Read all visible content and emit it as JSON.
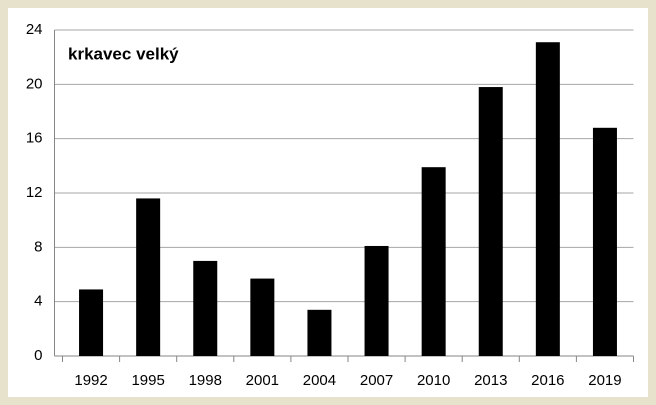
{
  "chart_data": {
    "type": "bar",
    "title": "krkavec velký",
    "categories": [
      "1992",
      "1995",
      "1998",
      "2001",
      "2004",
      "2007",
      "2010",
      "2013",
      "2016",
      "2019"
    ],
    "values": [
      4.9,
      11.6,
      7.0,
      5.7,
      3.4,
      8.1,
      13.9,
      19.8,
      23.1,
      16.8
    ],
    "color": "#000000",
    "ylim": [
      0,
      24
    ],
    "yticks": [
      0,
      4,
      8,
      12,
      16,
      20,
      24
    ],
    "grid": true
  }
}
